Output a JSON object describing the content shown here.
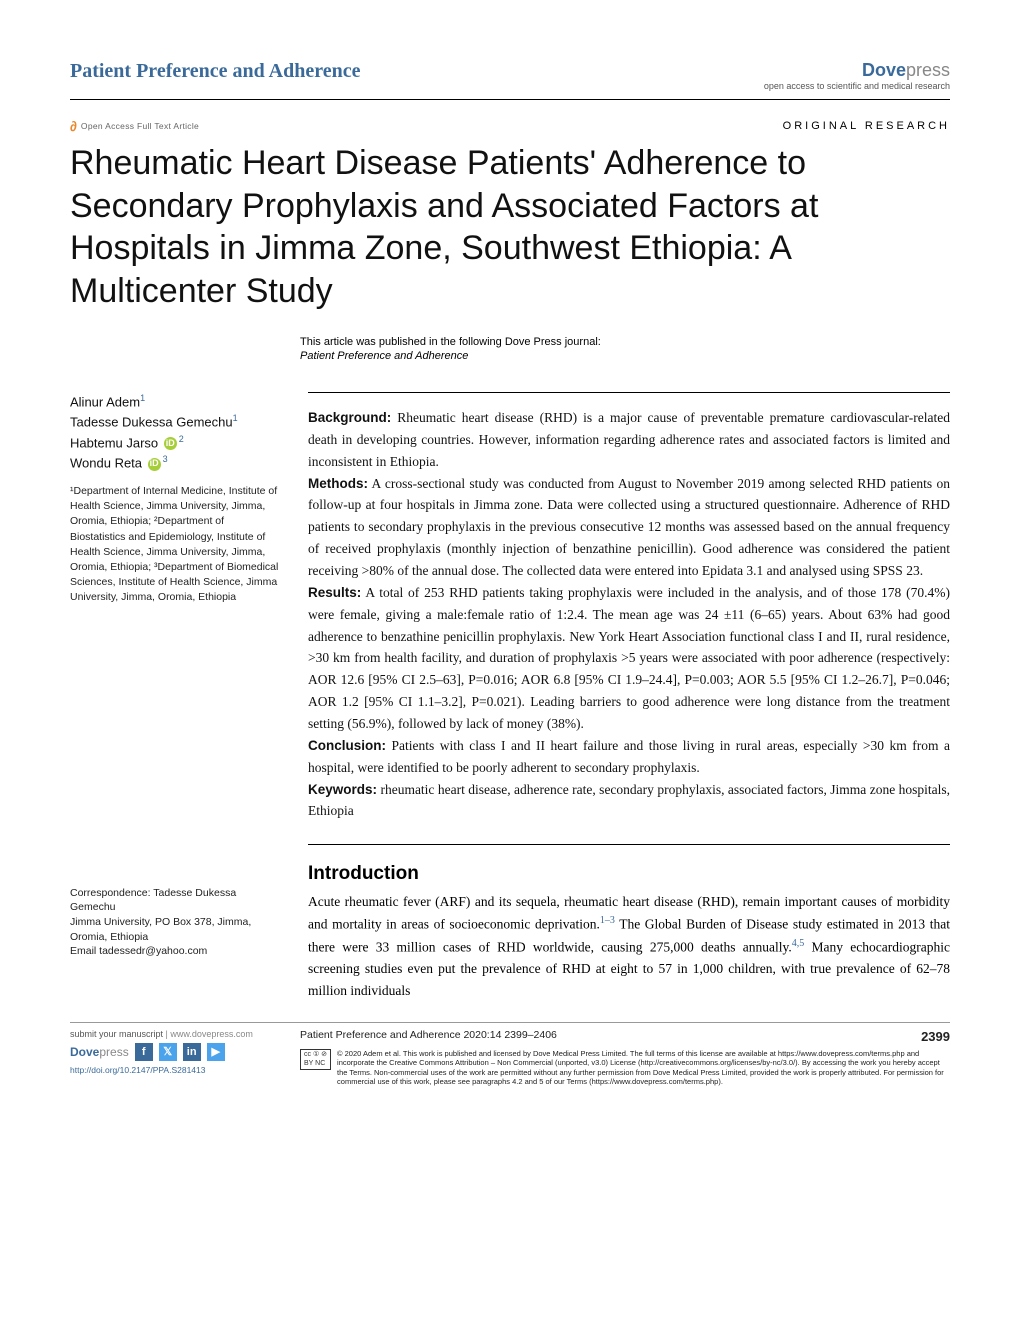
{
  "header": {
    "journal": "Patient Preference and Adherence",
    "publisher_main": "Dove",
    "publisher_suffix": "press",
    "publisher_tagline": "open access to scientific and medical research"
  },
  "oa": {
    "label": "Open Access Full Text Article",
    "article_type": "ORIGINAL RESEARCH"
  },
  "title": "Rheumatic Heart Disease Patients' Adherence to Secondary Prophylaxis and Associated Factors at Hospitals in Jimma Zone, Southwest Ethiopia: A Multicenter Study",
  "pub_note": "This article was published in the following Dove Press journal:",
  "pub_note_journal": "Patient Preference and Adherence",
  "authors": {
    "a1": "Alinur Adem",
    "a2": "Tadesse Dukessa Gemechu",
    "a3": "Habtemu Jarso",
    "a4": "Wondu Reta"
  },
  "affiliations": "¹Department of Internal Medicine, Institute of Health Science, Jimma University, Jimma, Oromia, Ethiopia; ²Department of Biostatistics and Epidemiology, Institute of Health Science, Jimma University, Jimma, Oromia, Ethiopia; ³Department of Biomedical Sciences, Institute of Health Science, Jimma University, Jimma, Oromia, Ethiopia",
  "correspondence": {
    "label": "Correspondence: Tadesse Dukessa Gemechu",
    "addr": "Jimma University, PO Box 378, Jimma, Oromia, Ethiopia",
    "email": "Email tadessedr@yahoo.com"
  },
  "abstract": {
    "background_label": "Background:",
    "background": " Rheumatic heart disease (RHD) is a major cause of preventable premature cardiovascular-related death in developing countries. However, information regarding adherence rates and associated factors is limited and inconsistent in Ethiopia.",
    "methods_label": "Methods:",
    "methods": " A cross-sectional study was conducted from August to November 2019 among selected RHD patients on follow-up at four hospitals in Jimma zone. Data were collected using a structured questionnaire. Adherence of RHD patients to secondary prophylaxis in the previous consecutive 12 months was assessed based on the annual frequency of received prophylaxis (monthly injection of benzathine penicillin). Good adherence was considered the patient receiving >80% of the annual dose. The collected data were entered into Epidata 3.1 and analysed using SPSS 23.",
    "results_label": "Results:",
    "results": " A total of 253 RHD patients taking prophylaxis were included in the analysis, and of those 178 (70.4%) were female, giving a male:female ratio of 1:2.4. The mean age was 24 ±11 (6–65) years. About 63% had good adherence to benzathine penicillin prophylaxis. New York Heart Association functional class I and II, rural residence, >30 km from health facility, and duration of prophylaxis >5 years were associated with poor adherence (respectively: AOR 12.6 [95% CI 2.5–63], P=0.016; AOR 6.8 [95% CI 1.9–24.4], P=0.003; AOR 5.5 [95% CI 1.2–26.7], P=0.046; AOR 1.2 [95% CI 1.1–3.2], P=0.021). Leading barriers to good adherence were long distance from the treatment setting (56.9%), followed by lack of money (38%).",
    "conclusion_label": "Conclusion:",
    "conclusion": " Patients with class I and II heart failure and those living in rural areas, especially >30 km from a hospital, were identified to be poorly adherent to secondary prophylaxis.",
    "keywords_label": "Keywords:",
    "keywords": " rheumatic heart disease, adherence rate, secondary prophylaxis, associated factors, Jimma zone hospitals, Ethiopia"
  },
  "intro": {
    "heading": "Introduction",
    "p1a": "Acute rheumatic fever (ARF) and its sequela, rheumatic heart disease (RHD), remain important causes of morbidity and mortality in areas of socioeconomic deprivation.",
    "ref1": "1–3",
    "p1b": " The Global Burden of Disease study estimated in 2013 that there were 33 million cases of RHD worldwide, causing 275,000 deaths annually.",
    "ref2": "4,5",
    "p1c": " Many echocardiographic screening studies even put the prevalence of RHD at eight to 57 in 1,000 children, with true prevalence of 62–78 million individuals"
  },
  "footer": {
    "submit_label": "submit your manuscript",
    "submit_url": " | www.dovepress.com",
    "dove_main": "Dove",
    "dove_suffix": "press",
    "doi": "http://doi.org/10.2147/PPA.S281413",
    "citation": "Patient Preference and Adherence 2020:14 2399–2406",
    "page_num": "2399",
    "license": "© 2020 Adem et al. This work is published and licensed by Dove Medical Press Limited. The full terms of this license are available at https://www.dovepress.com/terms.php and incorporate the Creative Commons Attribution – Non Commercial (unported, v3.0) License (http://creativecommons.org/licenses/by-nc/3.0/). By accessing the work you hereby accept the Terms. Non-commercial uses of the work are permitted without any further permission from Dove Medical Press Limited, provided the work is properly attributed. For permission for commercial use of this work, please see paragraphs 4.2 and 5 of our Terms (https://www.dovepress.com/terms.php)."
  }
}
